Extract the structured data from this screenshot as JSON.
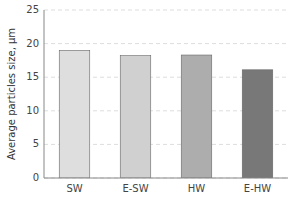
{
  "chart_data": {
    "type": "bar",
    "categories": [
      "SW",
      "E-SW",
      "HW",
      "E-HW"
    ],
    "values": [
      19.0,
      18.2,
      18.3,
      16.1
    ],
    "colors": [
      "#dedede",
      "#d0d0d0",
      "#adadad",
      "#787878"
    ],
    "ylabel": "Average particles size, μm",
    "ylim": [
      0,
      25
    ],
    "yticks": [
      0,
      5,
      10,
      15,
      20,
      25
    ],
    "grid": true
  }
}
